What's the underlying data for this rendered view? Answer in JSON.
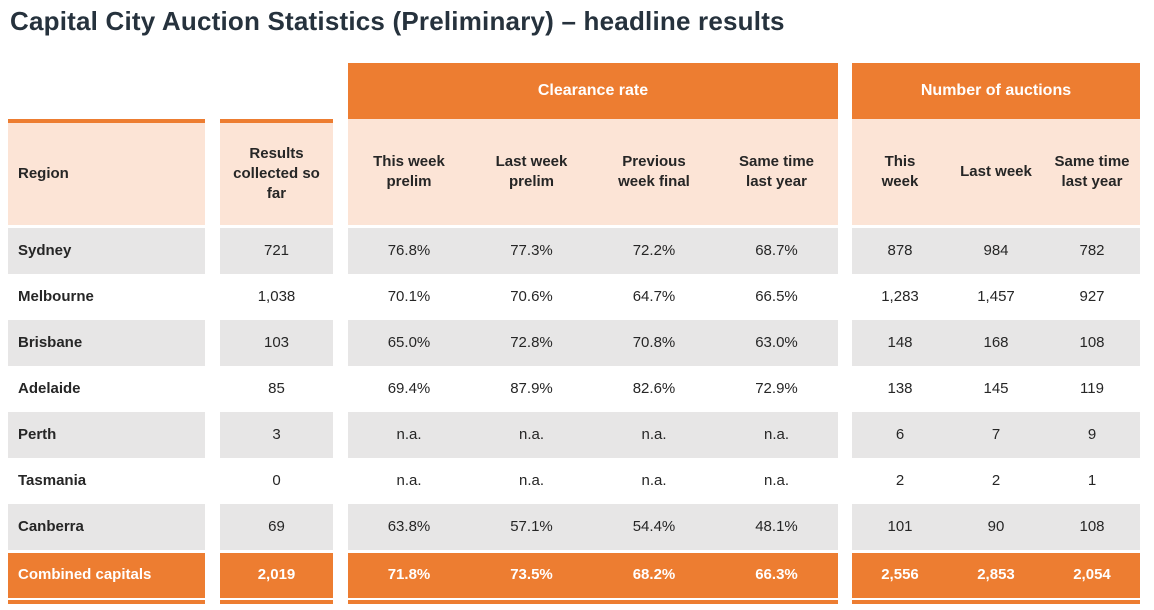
{
  "page": {
    "title": "Capital City Auction Statistics (Preliminary) – headline results"
  },
  "colors": {
    "orange": "#ED7D31",
    "peach": "#FCE4D6",
    "gray_row": "#E7E6E6",
    "title_text": "#26323D",
    "body_text": "#262626"
  },
  "table": {
    "group_headers": [
      {
        "label": "Clearance rate"
      },
      {
        "label": "Number of auctions"
      }
    ],
    "column_headers": {
      "region": "Region",
      "results_collected": "Results\ncollected so\nfar",
      "clearance": [
        "This week\nprelim",
        "Last week\nprelim",
        "Previous\nweek final",
        "Same time\nlast year"
      ],
      "auctions": [
        "This\nweek",
        "Last week",
        "Same time\nlast year"
      ]
    },
    "rows": [
      {
        "region": "Sydney",
        "results": "721",
        "clearance": [
          "76.8%",
          "77.3%",
          "72.2%",
          "68.7%"
        ],
        "auctions": [
          "878",
          "984",
          "782"
        ]
      },
      {
        "region": "Melbourne",
        "results": "1,038",
        "clearance": [
          "70.1%",
          "70.6%",
          "64.7%",
          "66.5%"
        ],
        "auctions": [
          "1,283",
          "1,457",
          "927"
        ]
      },
      {
        "region": "Brisbane",
        "results": "103",
        "clearance": [
          "65.0%",
          "72.8%",
          "70.8%",
          "63.0%"
        ],
        "auctions": [
          "148",
          "168",
          "108"
        ]
      },
      {
        "region": "Adelaide",
        "results": "85",
        "clearance": [
          "69.4%",
          "87.9%",
          "82.6%",
          "72.9%"
        ],
        "auctions": [
          "138",
          "145",
          "119"
        ]
      },
      {
        "region": "Perth",
        "results": "3",
        "clearance": [
          "n.a.",
          "n.a.",
          "n.a.",
          "n.a."
        ],
        "auctions": [
          "6",
          "7",
          "9"
        ]
      },
      {
        "region": "Tasmania",
        "results": "0",
        "clearance": [
          "n.a.",
          "n.a.",
          "n.a.",
          "n.a."
        ],
        "auctions": [
          "2",
          "2",
          "1"
        ]
      },
      {
        "region": "Canberra",
        "results": "69",
        "clearance": [
          "63.8%",
          "57.1%",
          "54.4%",
          "48.1%"
        ],
        "auctions": [
          "101",
          "90",
          "108"
        ]
      },
      {
        "region": "Combined capitals",
        "results": "2,019",
        "clearance": [
          "71.8%",
          "73.5%",
          "68.2%",
          "66.3%"
        ],
        "auctions": [
          "2,556",
          "2,853",
          "2,054"
        ],
        "is_total": true
      }
    ]
  }
}
